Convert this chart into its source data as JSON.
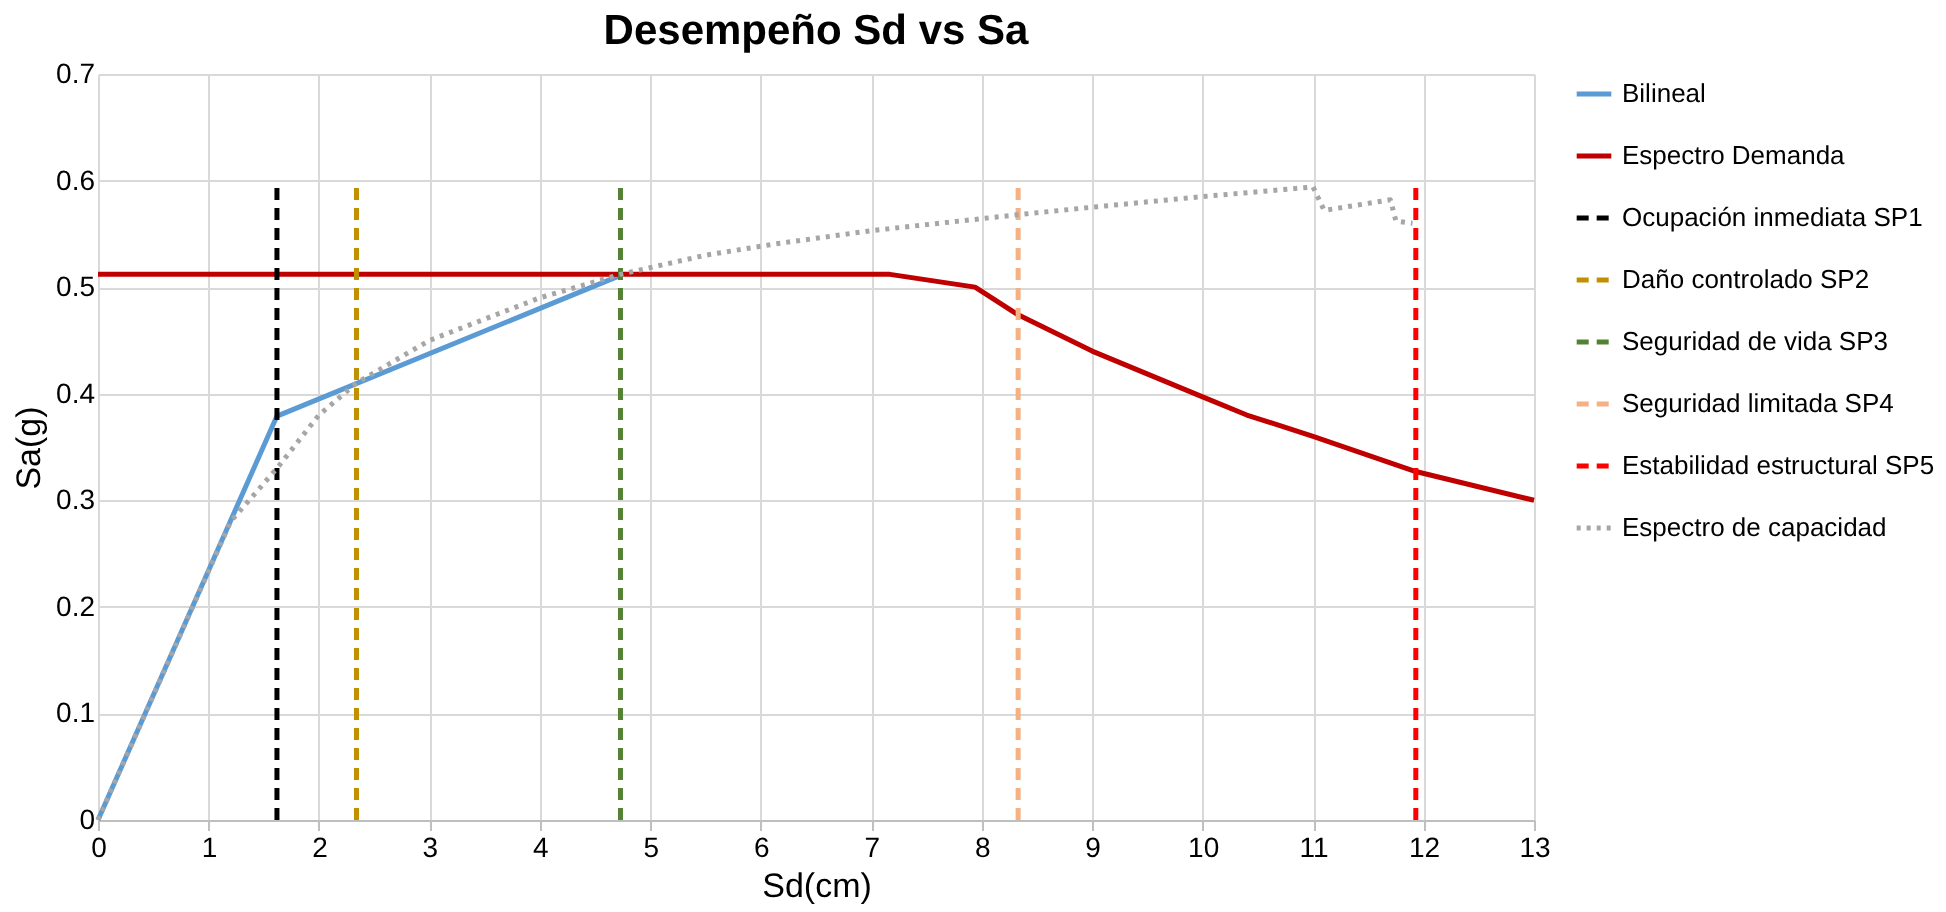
{
  "chart_data": {
    "type": "line",
    "title": "Desempeño Sd vs Sa",
    "xlabel": "Sd(cm)",
    "ylabel": "Sa(g)",
    "xlim": [
      0,
      13
    ],
    "xticks": [
      0,
      1,
      2,
      3,
      4,
      5,
      6,
      7,
      8,
      9,
      10,
      11,
      12,
      13
    ],
    "ylim": [
      0,
      0.7
    ],
    "yticks": [
      0,
      0.1,
      0.2,
      0.3,
      0.4,
      0.5,
      0.6,
      0.7
    ],
    "grid": true,
    "legend": "right",
    "marker": "none",
    "series": [
      {
        "name": "Bilineal",
        "color": "#5b9bd5",
        "line_style": "solid",
        "x": [
          0,
          1.62,
          4.73
        ],
        "values": [
          0,
          0.379,
          0.511
        ]
      },
      {
        "name": "Espectro Demanda",
        "color": "#c00000",
        "line_style": "solid",
        "x": [
          0,
          7.17,
          7.94,
          8.33,
          9.0,
          10.0,
          10.4,
          11.0,
          11.93,
          13.0
        ],
        "values": [
          0.512,
          0.512,
          0.5,
          0.474,
          0.44,
          0.397,
          0.38,
          0.36,
          0.327,
          0.3
        ]
      },
      {
        "name": "Ocupación inmediata SP1",
        "color": "#000000",
        "line_style": "dashed",
        "x": [
          1.62,
          1.62
        ],
        "values": [
          0,
          0.6
        ]
      },
      {
        "name": "Daño controlado SP2",
        "color": "#bf9000",
        "line_style": "dashed",
        "x": [
          2.34,
          2.34
        ],
        "values": [
          0,
          0.6
        ]
      },
      {
        "name": "Seguridad de vida SP3",
        "color": "#548235",
        "line_style": "dashed",
        "x": [
          4.73,
          4.73
        ],
        "values": [
          0,
          0.6
        ]
      },
      {
        "name": "Seguridad limitada SP4",
        "color": "#f4b183",
        "line_style": "dashed",
        "x": [
          8.33,
          8.33
        ],
        "values": [
          0,
          0.6
        ]
      },
      {
        "name": "Estabilidad estructural SP5",
        "color": "#ff0000",
        "line_style": "dashed",
        "x": [
          11.93,
          11.93
        ],
        "values": [
          0,
          0.6
        ]
      },
      {
        "name": "Espectro de capacidad",
        "color": "#a6a6a6",
        "line_style": "dotted",
        "x": [
          0,
          0.6,
          1.2,
          1.62,
          2.0,
          2.34,
          3.0,
          4.0,
          4.73,
          5.5,
          6.16,
          7.0,
          8.33,
          9.0,
          10.0,
          11.0,
          11.1,
          11.7,
          11.75,
          11.9
        ],
        "values": [
          0,
          0.14,
          0.28,
          0.33,
          0.38,
          0.41,
          0.45,
          0.49,
          0.512,
          0.53,
          0.541,
          0.553,
          0.568,
          0.575,
          0.585,
          0.594,
          0.572,
          0.582,
          0.562,
          0.56
        ]
      }
    ]
  }
}
